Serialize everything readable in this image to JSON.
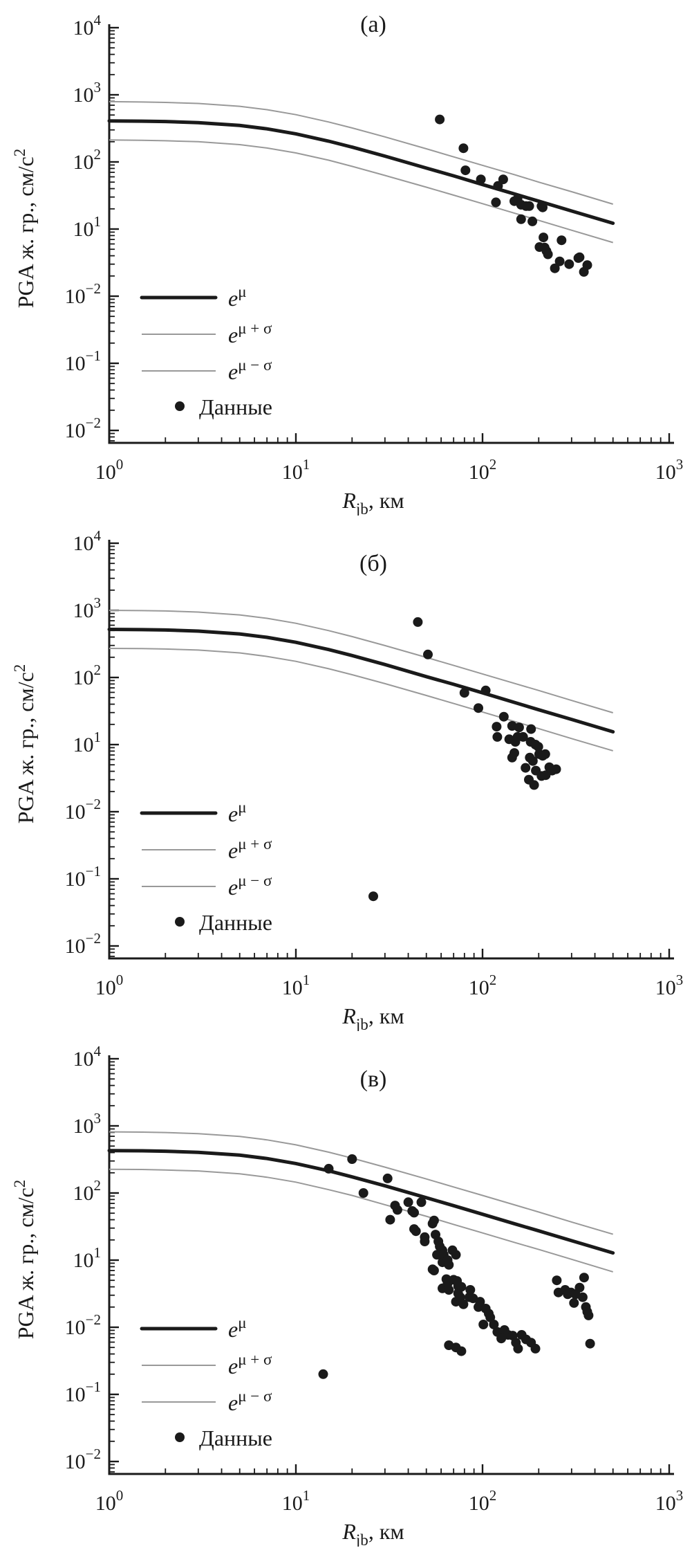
{
  "figure": {
    "background": "#ffffff",
    "colors": {
      "curve": "#1a1a1a",
      "band": "#999999",
      "dot": "#1a1a1a"
    },
    "tick_base": "10"
  },
  "chart_data": [
    {
      "type": "scatter",
      "title": "(а)",
      "xlabel": {
        "main": "R",
        "sub": "jb",
        "rest": ", км"
      },
      "ylabel": {
        "text": "PGA ж. гр., см/с",
        "sup": "2"
      },
      "x_range": [
        1,
        1000
      ],
      "y_range": [
        0.01,
        10000
      ],
      "grid": false,
      "legend_position": "lower-left",
      "x_tick_exps": [
        "0",
        "1",
        "2",
        "3"
      ],
      "y_tick_exps": [
        "4",
        "3",
        "2",
        "1",
        "−2",
        "−1",
        "−2"
      ],
      "legend": {
        "mu": {
          "base": "e",
          "sup": "μ"
        },
        "plus": {
          "base": "e",
          "sup": "μ + σ"
        },
        "minus": {
          "base": "e",
          "sup": "μ − σ"
        },
        "data": "Данные"
      },
      "curve_R": [
        1,
        1.5,
        2,
        3,
        5,
        7,
        10,
        15,
        20,
        30,
        50,
        70,
        100,
        150,
        200,
        300,
        500
      ],
      "mu": [
        409,
        405,
        400,
        385,
        349,
        311,
        262,
        204,
        166,
        122,
        81,
        62,
        46,
        33,
        26,
        18.6,
        12.2
      ],
      "mu_plus_sigma": [
        790,
        782,
        771,
        744,
        674,
        600,
        506,
        393,
        321,
        236,
        157,
        119,
        89,
        64,
        50,
        36,
        23.5
      ],
      "mu_minus_sigma": [
        212,
        210,
        207,
        200,
        181,
        161,
        136,
        106,
        86,
        63,
        42,
        32,
        23.9,
        17.1,
        13.5,
        9.6,
        6.3
      ],
      "points": [
        [
          59,
          430
        ],
        [
          79,
          160
        ],
        [
          81,
          75
        ],
        [
          98,
          55
        ],
        [
          118,
          25
        ],
        [
          121,
          44
        ],
        [
          129,
          55
        ],
        [
          148,
          26
        ],
        [
          154,
          28
        ],
        [
          161,
          23
        ],
        [
          161,
          14
        ],
        [
          171,
          22
        ],
        [
          178,
          22
        ],
        [
          185,
          13
        ],
        [
          202,
          5.4
        ],
        [
          207,
          22
        ],
        [
          210,
          21
        ],
        [
          212,
          7.5
        ],
        [
          215,
          5.3
        ],
        [
          220,
          4.7
        ],
        [
          224,
          4.2
        ],
        [
          244,
          2.6
        ],
        [
          259,
          3.3
        ],
        [
          265,
          6.8
        ],
        [
          291,
          3.0
        ],
        [
          326,
          3.7
        ],
        [
          331,
          3.8
        ],
        [
          349,
          2.3
        ],
        [
          364,
          2.9
        ]
      ]
    },
    {
      "type": "scatter",
      "title": "(б)",
      "xlabel": {
        "main": "R",
        "sub": "jb",
        "rest": ", км"
      },
      "ylabel": {
        "text": "PGA ж. гр., см/с",
        "sup": "2"
      },
      "x_range": [
        1,
        1000
      ],
      "y_range": [
        0.01,
        10000
      ],
      "grid": false,
      "legend_position": "lower-left",
      "x_tick_exps": [
        "0",
        "1",
        "2",
        "3"
      ],
      "y_tick_exps": [
        "4",
        "3",
        "2",
        "1",
        "−2",
        "−1",
        "−2"
      ],
      "legend": {
        "mu": {
          "base": "e",
          "sup": "μ"
        },
        "plus": {
          "base": "e",
          "sup": "μ + σ"
        },
        "minus": {
          "base": "e",
          "sup": "μ − σ"
        },
        "data": "Данные"
      },
      "curve_R": [
        1,
        1.5,
        2,
        3,
        5,
        7,
        10,
        15,
        20,
        30,
        50,
        70,
        100,
        150,
        200,
        300,
        500
      ],
      "mu": [
        521,
        516,
        509,
        491,
        445,
        396,
        334,
        260,
        212,
        156,
        103,
        79,
        59,
        42,
        33,
        23.7,
        15.5
      ],
      "mu_plus_sigma": [
        1001,
        991,
        978,
        943,
        854,
        761,
        641,
        499,
        407,
        299,
        199,
        151,
        113,
        81,
        64,
        45.5,
        29.8
      ],
      "mu_minus_sigma": [
        271,
        269,
        265,
        256,
        232,
        206,
        174,
        135,
        110,
        81,
        54,
        41,
        30.6,
        21.9,
        17.3,
        12.3,
        8.1
      ],
      "points": [
        [
          45,
          670
        ],
        [
          51,
          220
        ],
        [
          80,
          59
        ],
        [
          95,
          35
        ],
        [
          104,
          64
        ],
        [
          119,
          18.5
        ],
        [
          120,
          13
        ],
        [
          130,
          26
        ],
        [
          139,
          12
        ],
        [
          144,
          19
        ],
        [
          144,
          6.4
        ],
        [
          148,
          7.5
        ],
        [
          150,
          11
        ],
        [
          154,
          13
        ],
        [
          157,
          18
        ],
        [
          165,
          13
        ],
        [
          170,
          4.5
        ],
        [
          177,
          3.0
        ],
        [
          179,
          6.4
        ],
        [
          181,
          11
        ],
        [
          182,
          17
        ],
        [
          186,
          5.7
        ],
        [
          189,
          2.5
        ],
        [
          192,
          10
        ],
        [
          193,
          4.1
        ],
        [
          199,
          9.3
        ],
        [
          201,
          7.2
        ],
        [
          207,
          3.4
        ],
        [
          210,
          6.8
        ],
        [
          217,
          7.2
        ],
        [
          218,
          3.5
        ],
        [
          228,
          4.6
        ],
        [
          236,
          4.1
        ],
        [
          248,
          4.3
        ],
        [
          26,
          0.055
        ]
      ]
    },
    {
      "type": "scatter",
      "title": "(в)",
      "xlabel": {
        "main": "R",
        "sub": "jb",
        "rest": ", км"
      },
      "ylabel": {
        "text": "PGA ж. гр., см/с",
        "sup": "2"
      },
      "x_range": [
        1,
        1000
      ],
      "y_range": [
        0.01,
        10000
      ],
      "grid": false,
      "legend_position": "lower-left",
      "x_tick_exps": [
        "0",
        "1",
        "2",
        "3"
      ],
      "y_tick_exps": [
        "4",
        "3",
        "2",
        "1",
        "−2",
        "−1",
        "−2"
      ],
      "legend": {
        "mu": {
          "base": "e",
          "sup": "μ"
        },
        "plus": {
          "base": "e",
          "sup": "μ + σ"
        },
        "minus": {
          "base": "e",
          "sup": "μ − σ"
        },
        "data": "Данные"
      },
      "curve_R": [
        1,
        1.5,
        2,
        3,
        5,
        7,
        10,
        15,
        20,
        30,
        50,
        70,
        100,
        150,
        200,
        300,
        500
      ],
      "mu": [
        429,
        425,
        419,
        404,
        366,
        326,
        275,
        214,
        174,
        128,
        85,
        64.7,
        48.3,
        34.5,
        27.3,
        19.5,
        12.8
      ],
      "mu_plus_sigma": [
        815,
        807,
        796,
        767,
        695,
        619,
        522,
        406,
        331,
        243,
        162,
        123,
        92,
        66,
        52,
        37,
        24.3
      ],
      "mu_minus_sigma": [
        226,
        224,
        220,
        213,
        193,
        172,
        145,
        112,
        92,
        67,
        45,
        34,
        25.4,
        18.2,
        14.4,
        10.3,
        6.7
      ],
      "points": [
        [
          15,
          230
        ],
        [
          20,
          320
        ],
        [
          23,
          100
        ],
        [
          31,
          165
        ],
        [
          32,
          40
        ],
        [
          34,
          65
        ],
        [
          35,
          56
        ],
        [
          40,
          73
        ],
        [
          42,
          54
        ],
        [
          43,
          51
        ],
        [
          43,
          29
        ],
        [
          44,
          27
        ],
        [
          47,
          73
        ],
        [
          49,
          22
        ],
        [
          49,
          19
        ],
        [
          54,
          35
        ],
        [
          55,
          39
        ],
        [
          54,
          7.3
        ],
        [
          55,
          7.0
        ],
        [
          56,
          24
        ],
        [
          57,
          12
        ],
        [
          58,
          19
        ],
        [
          59,
          16
        ],
        [
          61,
          14
        ],
        [
          61,
          9.3
        ],
        [
          61,
          3.8
        ],
        [
          62,
          12
        ],
        [
          64,
          5.2
        ],
        [
          65,
          10
        ],
        [
          65,
          4.5
        ],
        [
          66,
          8.5
        ],
        [
          66,
          3.6
        ],
        [
          66,
          0.54
        ],
        [
          69,
          14
        ],
        [
          70,
          5.1
        ],
        [
          72,
          12
        ],
        [
          72,
          2.4
        ],
        [
          72,
          0.5
        ],
        [
          73,
          4.9
        ],
        [
          74,
          4.1
        ],
        [
          74,
          3.2
        ],
        [
          76,
          2.8
        ],
        [
          77,
          4.0
        ],
        [
          77,
          0.44
        ],
        [
          79,
          2.2
        ],
        [
          85,
          2.8
        ],
        [
          86,
          3.6
        ],
        [
          89,
          2.7
        ],
        [
          95,
          2.0
        ],
        [
          97,
          2.4
        ],
        [
          101,
          1.1
        ],
        [
          104,
          1.9
        ],
        [
          108,
          1.6
        ],
        [
          110,
          1.4
        ],
        [
          115,
          1.1
        ],
        [
          120,
          0.85
        ],
        [
          126,
          0.68
        ],
        [
          131,
          0.91
        ],
        [
          137,
          0.77
        ],
        [
          145,
          0.75
        ],
        [
          151,
          0.59
        ],
        [
          155,
          0.48
        ],
        [
          162,
          0.77
        ],
        [
          171,
          0.66
        ],
        [
          182,
          0.59
        ],
        [
          192,
          0.48
        ],
        [
          250,
          5.0
        ],
        [
          255,
          3.3
        ],
        [
          277,
          3.6
        ],
        [
          286,
          3.1
        ],
        [
          298,
          3.3
        ],
        [
          309,
          2.3
        ],
        [
          315,
          3.1
        ],
        [
          331,
          3.9
        ],
        [
          344,
          2.8
        ],
        [
          350,
          5.5
        ],
        [
          358,
          2.0
        ],
        [
          364,
          1.7
        ],
        [
          370,
          1.5
        ],
        [
          377,
          0.57
        ],
        [
          14,
          0.2
        ]
      ]
    }
  ]
}
